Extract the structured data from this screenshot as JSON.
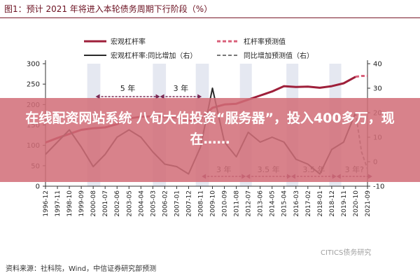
{
  "figure_title": "图1：预计 2021 年将进入本轮债务周期下行阶段（%）",
  "source": "资料来源：社科院，Wind，中信证券研究部预测",
  "watermark": "CITICS债务研究",
  "overlay": {
    "headline": "在线配资网站系统 八旬大伯投资“服务器”，投入400多万，现在……"
  },
  "colors": {
    "leverage": "#9e1f3a",
    "yoy": "#2a2a2a",
    "leverage_forecast": "#d9607a",
    "yoy_forecast": "#777777",
    "cycle_bg": "#cfd6e6",
    "annot": "#7a2a55",
    "title": "#6b1020"
  },
  "chart_data": {
    "type": "line",
    "title": "图1：预计 2021 年将进入本轮债务周期下行阶段（%）",
    "x_ticks": [
      "1996-12",
      "1997-11",
      "1998-10",
      "1999-09",
      "2000-08",
      "2001-07",
      "2002-06",
      "2003-05",
      "2004-04",
      "2005-03",
      "2006-02",
      "2007-01",
      "2007-12",
      "2008-11",
      "2009-10",
      "2010-09",
      "2011-08",
      "2012-07",
      "2013-06",
      "2014-05",
      "2015-04",
      "2016-03",
      "2017-02",
      "2018-01",
      "2018-12",
      "2019-11",
      "2020-10",
      "2021-09"
    ],
    "y_left": {
      "lim": [
        0,
        300
      ],
      "ticks": [
        0,
        50,
        100,
        150,
        200,
        250,
        300
      ]
    },
    "y_right": {
      "lim": [
        -10,
        40
      ],
      "ticks": [
        -10,
        0,
        10,
        20,
        30,
        40
      ]
    },
    "legend": [
      "宏观杠杆率",
      "宏观杠杆率:同比增加（右）",
      "杠杆率预测值",
      "同比增加预测值（右）"
    ],
    "series": [
      {
        "name": "宏观杠杆率",
        "axis": "left",
        "x": [
          0,
          1,
          2,
          3,
          4,
          5,
          6,
          7,
          8,
          9,
          10,
          11,
          12,
          13,
          14,
          15,
          16,
          17,
          18,
          19,
          20,
          21,
          22,
          23,
          24,
          25,
          26
        ],
        "values": [
          107,
          118,
          128,
          138,
          142,
          144,
          152,
          166,
          170,
          171,
          170,
          168,
          161,
          165,
          192,
          200,
          202,
          212,
          222,
          232,
          245,
          243,
          244,
          241,
          245,
          252,
          268
        ]
      },
      {
        "name": "杠杆率预测值",
        "axis": "left",
        "x": [
          26,
          26.5,
          27
        ],
        "values": [
          268,
          270,
          270
        ]
      },
      {
        "name": "宏观杠杆率:同比增加（右）",
        "axis": "right",
        "x": [
          0,
          1,
          2,
          3,
          4,
          5,
          6,
          7,
          8,
          9,
          10,
          11,
          12,
          13,
          14,
          15,
          16,
          17,
          18,
          19,
          20,
          21,
          22,
          23,
          24,
          25,
          26
        ],
        "values": [
          3,
          8,
          13,
          6,
          -2,
          3,
          10,
          13,
          10,
          4,
          -1,
          -2,
          -5,
          6,
          30,
          8,
          2,
          12,
          8,
          10,
          8,
          1,
          -1,
          -5,
          5,
          8,
          20
        ]
      },
      {
        "name": "同比增加预测值（右）",
        "axis": "right",
        "x": [
          26,
          26.5,
          27
        ],
        "values": [
          20,
          4,
          -3
        ]
      }
    ],
    "annotations": [
      {
        "label": "5 年",
        "from": 4.2,
        "to": 9.6,
        "band": "upper"
      },
      {
        "label": "3 年",
        "from": 9.6,
        "to": 13.1,
        "band": "upper"
      },
      {
        "label": "3 年",
        "from": 13.1,
        "to": 16.8,
        "band": "lower"
      },
      {
        "label": "3.5 年",
        "from": 16.8,
        "to": 20.6,
        "band": "lower"
      },
      {
        "label": "3.5 年",
        "from": 20.6,
        "to": 24.4,
        "band": "lower"
      },
      {
        "label": "3 年?",
        "from": 24.4,
        "to": 27.4,
        "band": "lower"
      }
    ],
    "shaded_cycles": [
      [
        3.5,
        4.6
      ],
      [
        9.0,
        10.1
      ],
      [
        12.6,
        13.7
      ],
      [
        16.3,
        17.3
      ],
      [
        20.2,
        21.2
      ],
      [
        23.8,
        24.8
      ]
    ],
    "grid": false,
    "legend_placement": "top"
  }
}
